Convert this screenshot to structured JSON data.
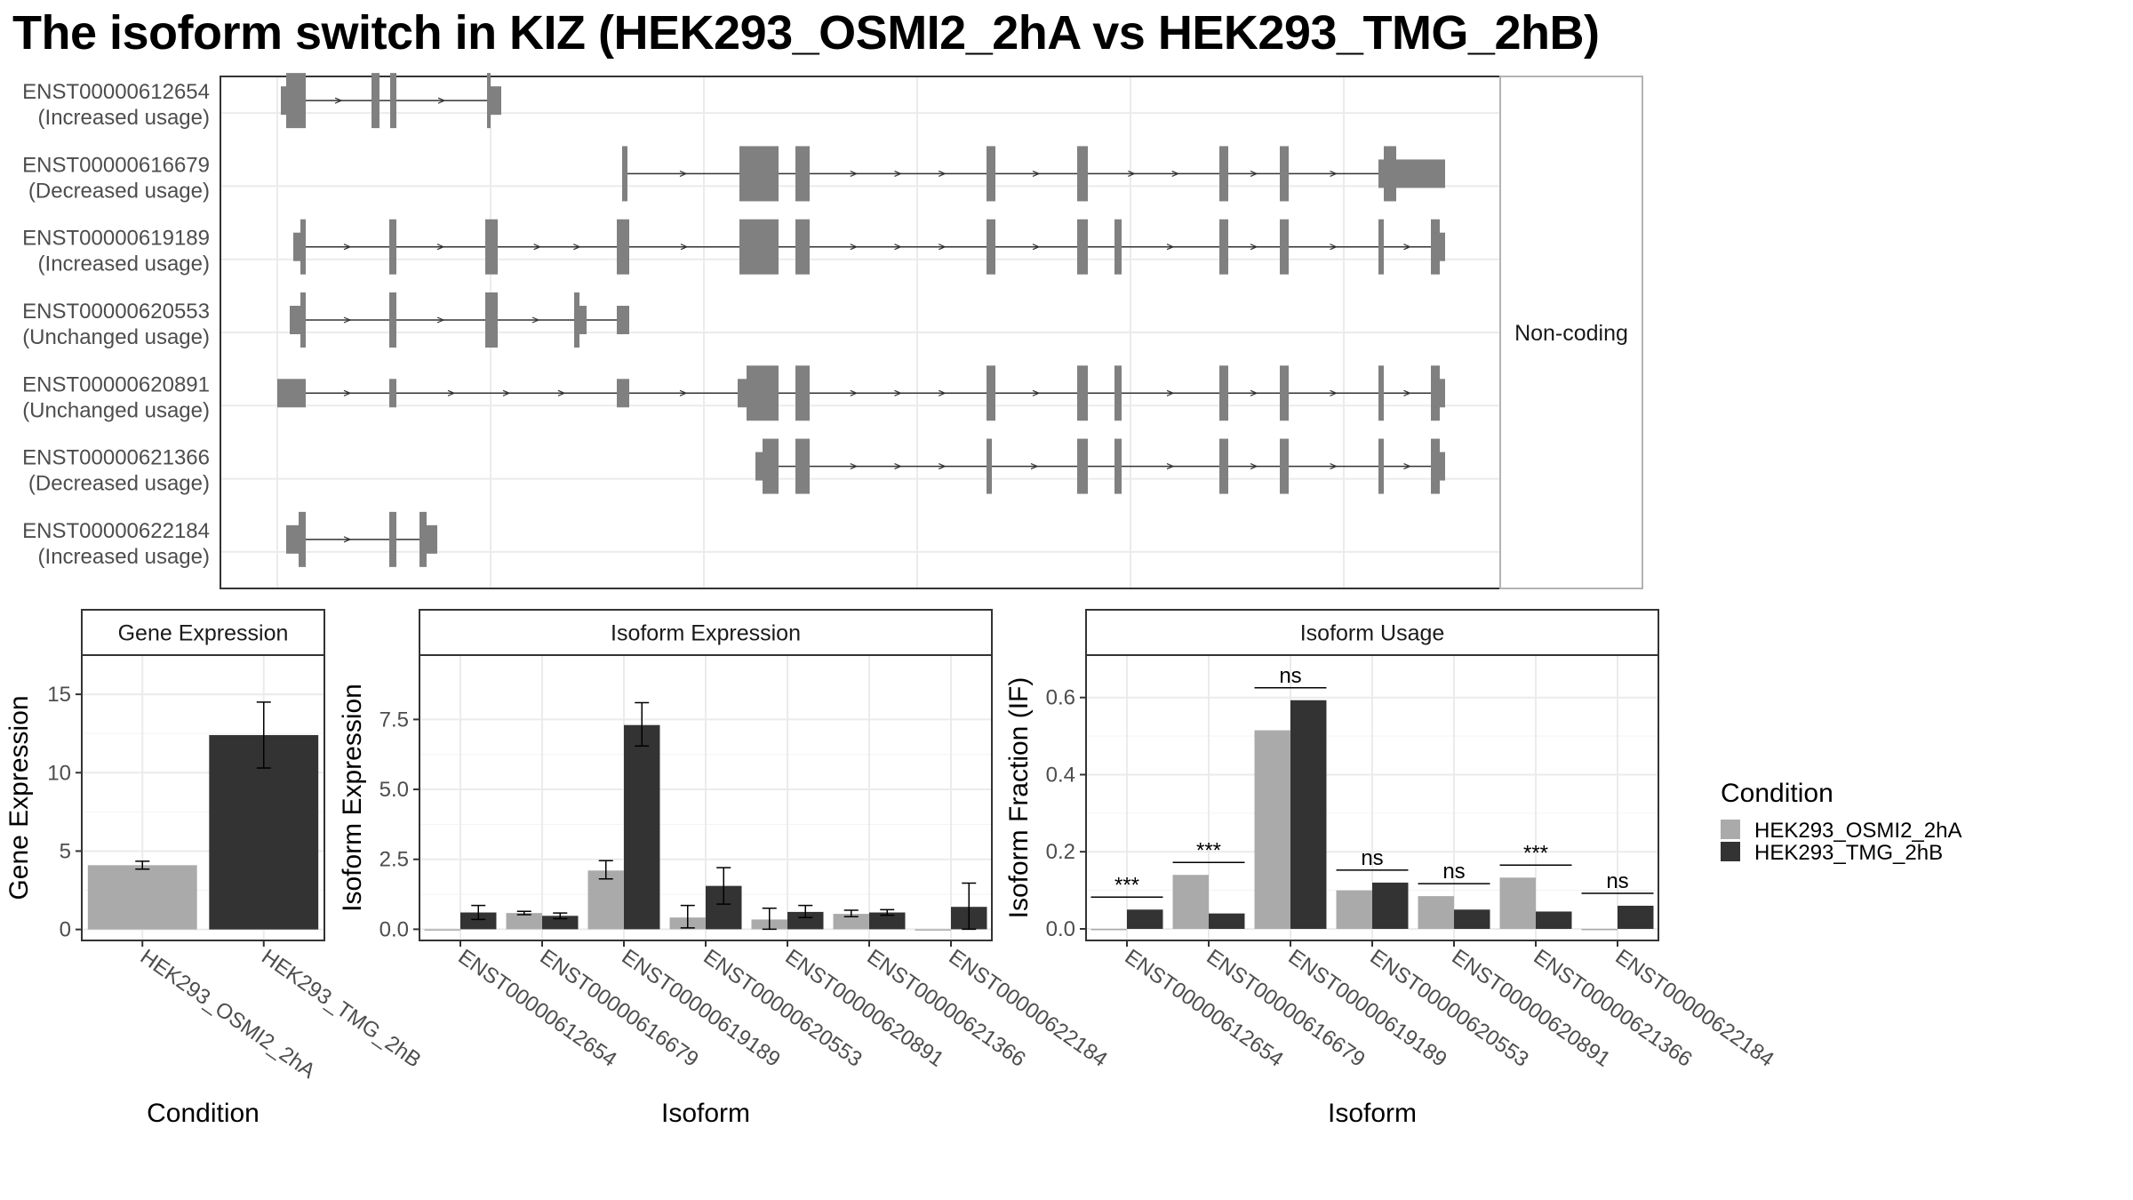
{
  "title": "The isoform switch in KIZ (HEK293_OSMI2_2hA vs HEK293_TMG_2hB)",
  "colors": {
    "exon": "#808080",
    "cond1": "#aaaaaa",
    "cond2": "#333333",
    "grid": "#ebebeb",
    "panel_border": "#333333",
    "strip_fill": "#ffffff"
  },
  "transcripts": {
    "facet_label": "Non-coding",
    "items": [
      {
        "id": "ENST00000612654",
        "label": "(Increased usage)"
      },
      {
        "id": "ENST00000616679",
        "label": "(Decreased usage)"
      },
      {
        "id": "ENST00000619189",
        "label": "(Increased usage)"
      },
      {
        "id": "ENST00000620553",
        "label": "(Unchanged usage)"
      },
      {
        "id": "ENST00000620891",
        "label": "(Unchanged usage)"
      },
      {
        "id": "ENST00000621366",
        "label": "(Decreased usage)"
      },
      {
        "id": "ENST00000622184",
        "label": "(Increased usage)"
      }
    ]
  },
  "chart_data": [
    {
      "panel": "Gene Expression",
      "type": "bar",
      "xlabel": "Condition",
      "ylabel": "Gene Expression",
      "categories": [
        "HEK293_OSMI2_2hA",
        "HEK293_TMG_2hB"
      ],
      "values": [
        4.1,
        12.4
      ],
      "errors": [
        [
          3.85,
          4.35
        ],
        [
          10.3,
          14.5
        ]
      ],
      "ylim": [
        -0.7,
        17.5
      ],
      "yticks": [
        0,
        5,
        10,
        15
      ]
    },
    {
      "panel": "Isoform Expression",
      "type": "bar",
      "xlabel": "Isoform",
      "ylabel": "Isoform Expression",
      "categories": [
        "ENST00000612654",
        "ENST00000616679",
        "ENST00000619189",
        "ENST00000620553",
        "ENST00000620891",
        "ENST00000621366",
        "ENST00000622184"
      ],
      "series": [
        {
          "name": "HEK293_OSMI2_2hA",
          "values": [
            0.0,
            0.58,
            2.1,
            0.42,
            0.35,
            0.55,
            0.0
          ],
          "errors": [
            [
              0.0,
              0.0
            ],
            [
              0.52,
              0.64
            ],
            [
              1.8,
              2.45
            ],
            [
              0.05,
              0.85
            ],
            [
              0.0,
              0.75
            ],
            [
              0.45,
              0.68
            ],
            [
              0.0,
              0.0
            ]
          ]
        },
        {
          "name": "HEK293_TMG_2hB",
          "values": [
            0.6,
            0.48,
            7.3,
            1.55,
            0.62,
            0.6,
            0.8
          ],
          "errors": [
            [
              0.35,
              0.85
            ],
            [
              0.38,
              0.58
            ],
            [
              6.55,
              8.1
            ],
            [
              0.9,
              2.2
            ],
            [
              0.42,
              0.85
            ],
            [
              0.5,
              0.7
            ],
            [
              0.0,
              1.65
            ]
          ]
        }
      ],
      "ylim": [
        -0.4,
        9.8
      ],
      "yticks": [
        0.0,
        2.5,
        5.0,
        7.5
      ]
    },
    {
      "panel": "Isoform Usage",
      "type": "bar",
      "xlabel": "Isoform",
      "ylabel": "Isoform Fraction (IF)",
      "categories": [
        "ENST00000612654",
        "ENST00000616679",
        "ENST00000619189",
        "ENST00000620553",
        "ENST00000620891",
        "ENST00000621366",
        "ENST00000622184"
      ],
      "series": [
        {
          "name": "HEK293_OSMI2_2hA",
          "values": [
            0.0,
            0.14,
            0.515,
            0.1,
            0.085,
            0.133,
            0.0
          ]
        },
        {
          "name": "HEK293_TMG_2hB",
          "values": [
            0.05,
            0.04,
            0.593,
            0.12,
            0.05,
            0.045,
            0.06
          ]
        }
      ],
      "significance": [
        "***",
        "***",
        "ns",
        "ns",
        "ns",
        "***",
        "ns"
      ],
      "ylim": [
        -0.03,
        0.71
      ],
      "yticks": [
        0.0,
        0.2,
        0.4,
        0.6
      ]
    }
  ],
  "legend": {
    "title": "Condition",
    "entries": [
      "HEK293_OSMI2_2hA",
      "HEK293_TMG_2hB"
    ]
  }
}
